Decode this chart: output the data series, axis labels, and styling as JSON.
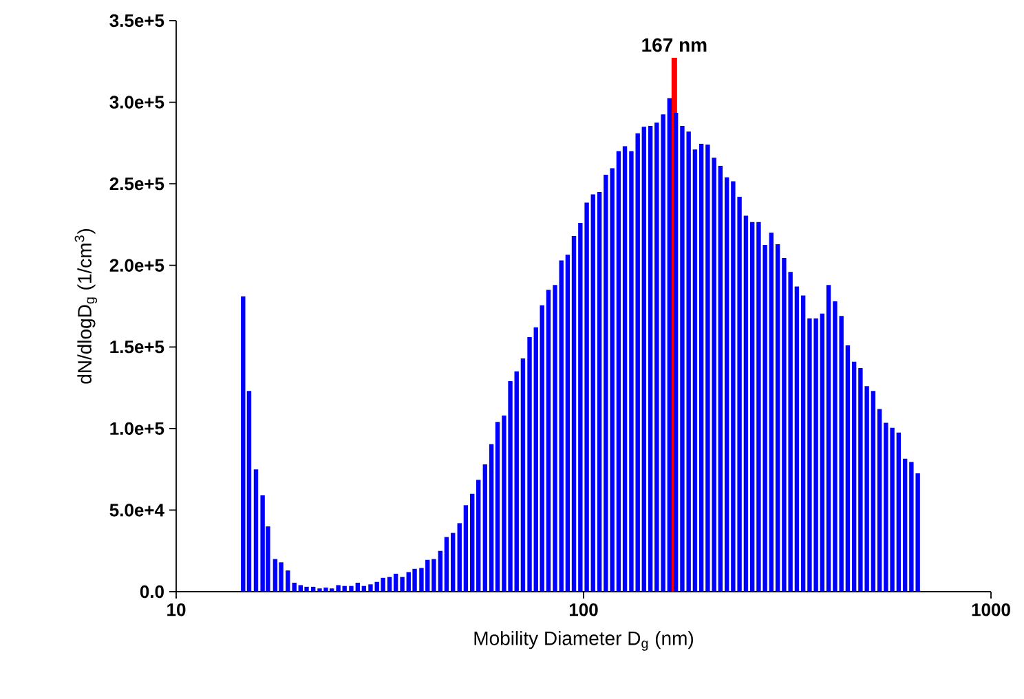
{
  "chart_data": {
    "type": "bar",
    "xlabel": "Mobility Diameter D$_{g}$ (nm)",
    "ylabel": "dN/dlogD$_{g}$ (1/cm$^{3}$)",
    "x": [
      14.6,
      15.1,
      15.7,
      16.3,
      16.8,
      17.5,
      18.1,
      18.8,
      19.5,
      20.2,
      20.9,
      21.7,
      22.5,
      23.3,
      24.1,
      25.0,
      25.9,
      26.9,
      27.9,
      28.9,
      30.0,
      31.1,
      32.2,
      33.4,
      34.6,
      35.9,
      37.2,
      38.5,
      40.0,
      41.4,
      42.9,
      44.5,
      46.1,
      47.8,
      49.6,
      51.4,
      53.3,
      55.2,
      57.3,
      59.4,
      61.5,
      63.8,
      66.1,
      68.5,
      71.0,
      73.7,
      76.4,
      79.1,
      82.0,
      85.1,
      88.2,
      91.4,
      94.7,
      98.2,
      101.8,
      105.5,
      109.4,
      113.4,
      117.6,
      121.9,
      126.3,
      131.0,
      135.8,
      140.7,
      145.9,
      151.2,
      156.8,
      162.5,
      168.5,
      174.7,
      181.1,
      187.7,
      194.6,
      201.7,
      209.1,
      216.7,
      224.7,
      232.9,
      241.4,
      250.3,
      259.5,
      269.0,
      278.8,
      289.0,
      299.6,
      310.6,
      322.0,
      333.8,
      346.0,
      358.7,
      371.8,
      385.4,
      399.5,
      414.2,
      429.4,
      445.1,
      461.4,
      478.3,
      495.8,
      514.0,
      532.8,
      552.3,
      572.5,
      593.5,
      615.3,
      637.8,
      661.2
    ],
    "values": [
      181000,
      123000,
      75000,
      59000,
      40000,
      20000,
      18000,
      13000,
      5500,
      4000,
      3000,
      3000,
      2000,
      2500,
      2000,
      4000,
      3500,
      3500,
      5500,
      3500,
      4500,
      6000,
      8500,
      9000,
      11000,
      9000,
      12000,
      14000,
      14500,
      19500,
      20000,
      25000,
      33500,
      36000,
      42000,
      53000,
      60000,
      68500,
      78000,
      90500,
      104000,
      108000,
      129000,
      135000,
      143000,
      156000,
      162000,
      175500,
      185000,
      188000,
      203000,
      206500,
      218000,
      226000,
      238500,
      243500,
      245000,
      255500,
      259500,
      270000,
      273000,
      270000,
      281000,
      285000,
      285500,
      287500,
      292500,
      302500,
      293500,
      285500,
      282000,
      271000,
      274500,
      274000,
      266000,
      261000,
      254000,
      251500,
      242000,
      230500,
      226500,
      226500,
      212500,
      220000,
      213000,
      204500,
      196000,
      187000,
      181500,
      167500,
      167500,
      170500,
      188000,
      178000,
      169000,
      151000,
      141000,
      137000,
      126000,
      123000,
      112000,
      103500,
      100500,
      97500,
      81500,
      79500,
      72500
    ],
    "color": "#0000ff",
    "xlim": [
      10,
      1000
    ],
    "xticks": [
      10,
      100,
      1000
    ],
    "log": "x",
    "ylim": [
      0,
      350000
    ],
    "yticks": [
      {
        "value": 0,
        "label": "0.0"
      },
      {
        "value": 50000,
        "label": "5.0e+4"
      },
      {
        "value": 100000,
        "label": "1.0e+5"
      },
      {
        "value": 150000,
        "label": "1.5e+5"
      },
      {
        "value": 200000,
        "label": "2.0e+5"
      },
      {
        "value": 250000,
        "label": "2.5e+5"
      },
      {
        "value": 300000,
        "label": "3.0e+5"
      },
      {
        "value": 350000,
        "label": "3.5e+5"
      }
    ],
    "ref_lines": [
      {
        "axis": "x",
        "value": 167,
        "label": "167 nm",
        "color": "#ff0000"
      }
    ]
  }
}
